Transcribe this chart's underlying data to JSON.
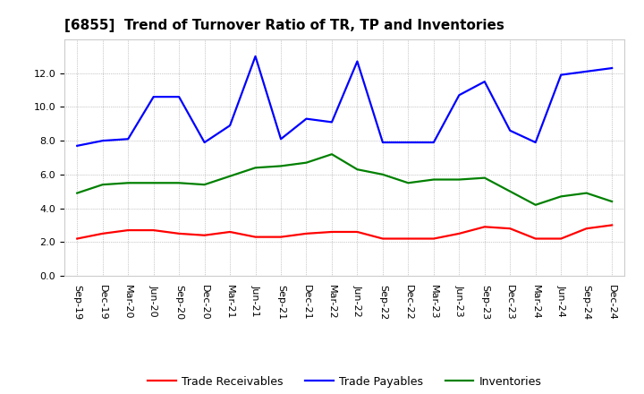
{
  "title": "[6855]  Trend of Turnover Ratio of TR, TP and Inventories",
  "labels": [
    "Sep-19",
    "Dec-19",
    "Mar-20",
    "Jun-20",
    "Sep-20",
    "Dec-20",
    "Mar-21",
    "Jun-21",
    "Sep-21",
    "Dec-21",
    "Mar-22",
    "Jun-22",
    "Sep-22",
    "Dec-22",
    "Mar-23",
    "Jun-23",
    "Sep-23",
    "Dec-23",
    "Mar-24",
    "Jun-24",
    "Sep-24",
    "Dec-24"
  ],
  "trade_receivables": [
    2.2,
    2.5,
    2.7,
    2.7,
    2.5,
    2.4,
    2.6,
    2.3,
    2.3,
    2.5,
    2.6,
    2.6,
    2.2,
    2.2,
    2.2,
    2.5,
    2.9,
    2.8,
    2.2,
    2.2,
    2.8,
    3.0
  ],
  "trade_payables": [
    7.7,
    8.0,
    8.1,
    10.6,
    10.6,
    7.9,
    8.9,
    13.0,
    8.1,
    9.3,
    9.1,
    12.7,
    7.9,
    7.9,
    7.9,
    10.7,
    11.5,
    8.6,
    7.9,
    11.9,
    12.1,
    12.3
  ],
  "inventories": [
    4.9,
    5.4,
    5.5,
    5.5,
    5.5,
    5.4,
    5.9,
    6.4,
    6.5,
    6.7,
    7.2,
    6.3,
    6.0,
    5.5,
    5.7,
    5.7,
    5.8,
    5.0,
    4.2,
    4.7,
    4.9,
    4.4
  ],
  "ylim": [
    0.0,
    14.0
  ],
  "yticks": [
    0.0,
    2.0,
    4.0,
    6.0,
    8.0,
    10.0,
    12.0
  ],
  "line_colors": {
    "trade_receivables": "#ff0000",
    "trade_payables": "#0000ff",
    "inventories": "#008000"
  },
  "legend_labels": [
    "Trade Receivables",
    "Trade Payables",
    "Inventories"
  ],
  "background_color": "#ffffff",
  "plot_bg_color": "#ffffff",
  "grid_color": "#999999",
  "title_fontsize": 11,
  "tick_fontsize": 8,
  "legend_fontsize": 9
}
